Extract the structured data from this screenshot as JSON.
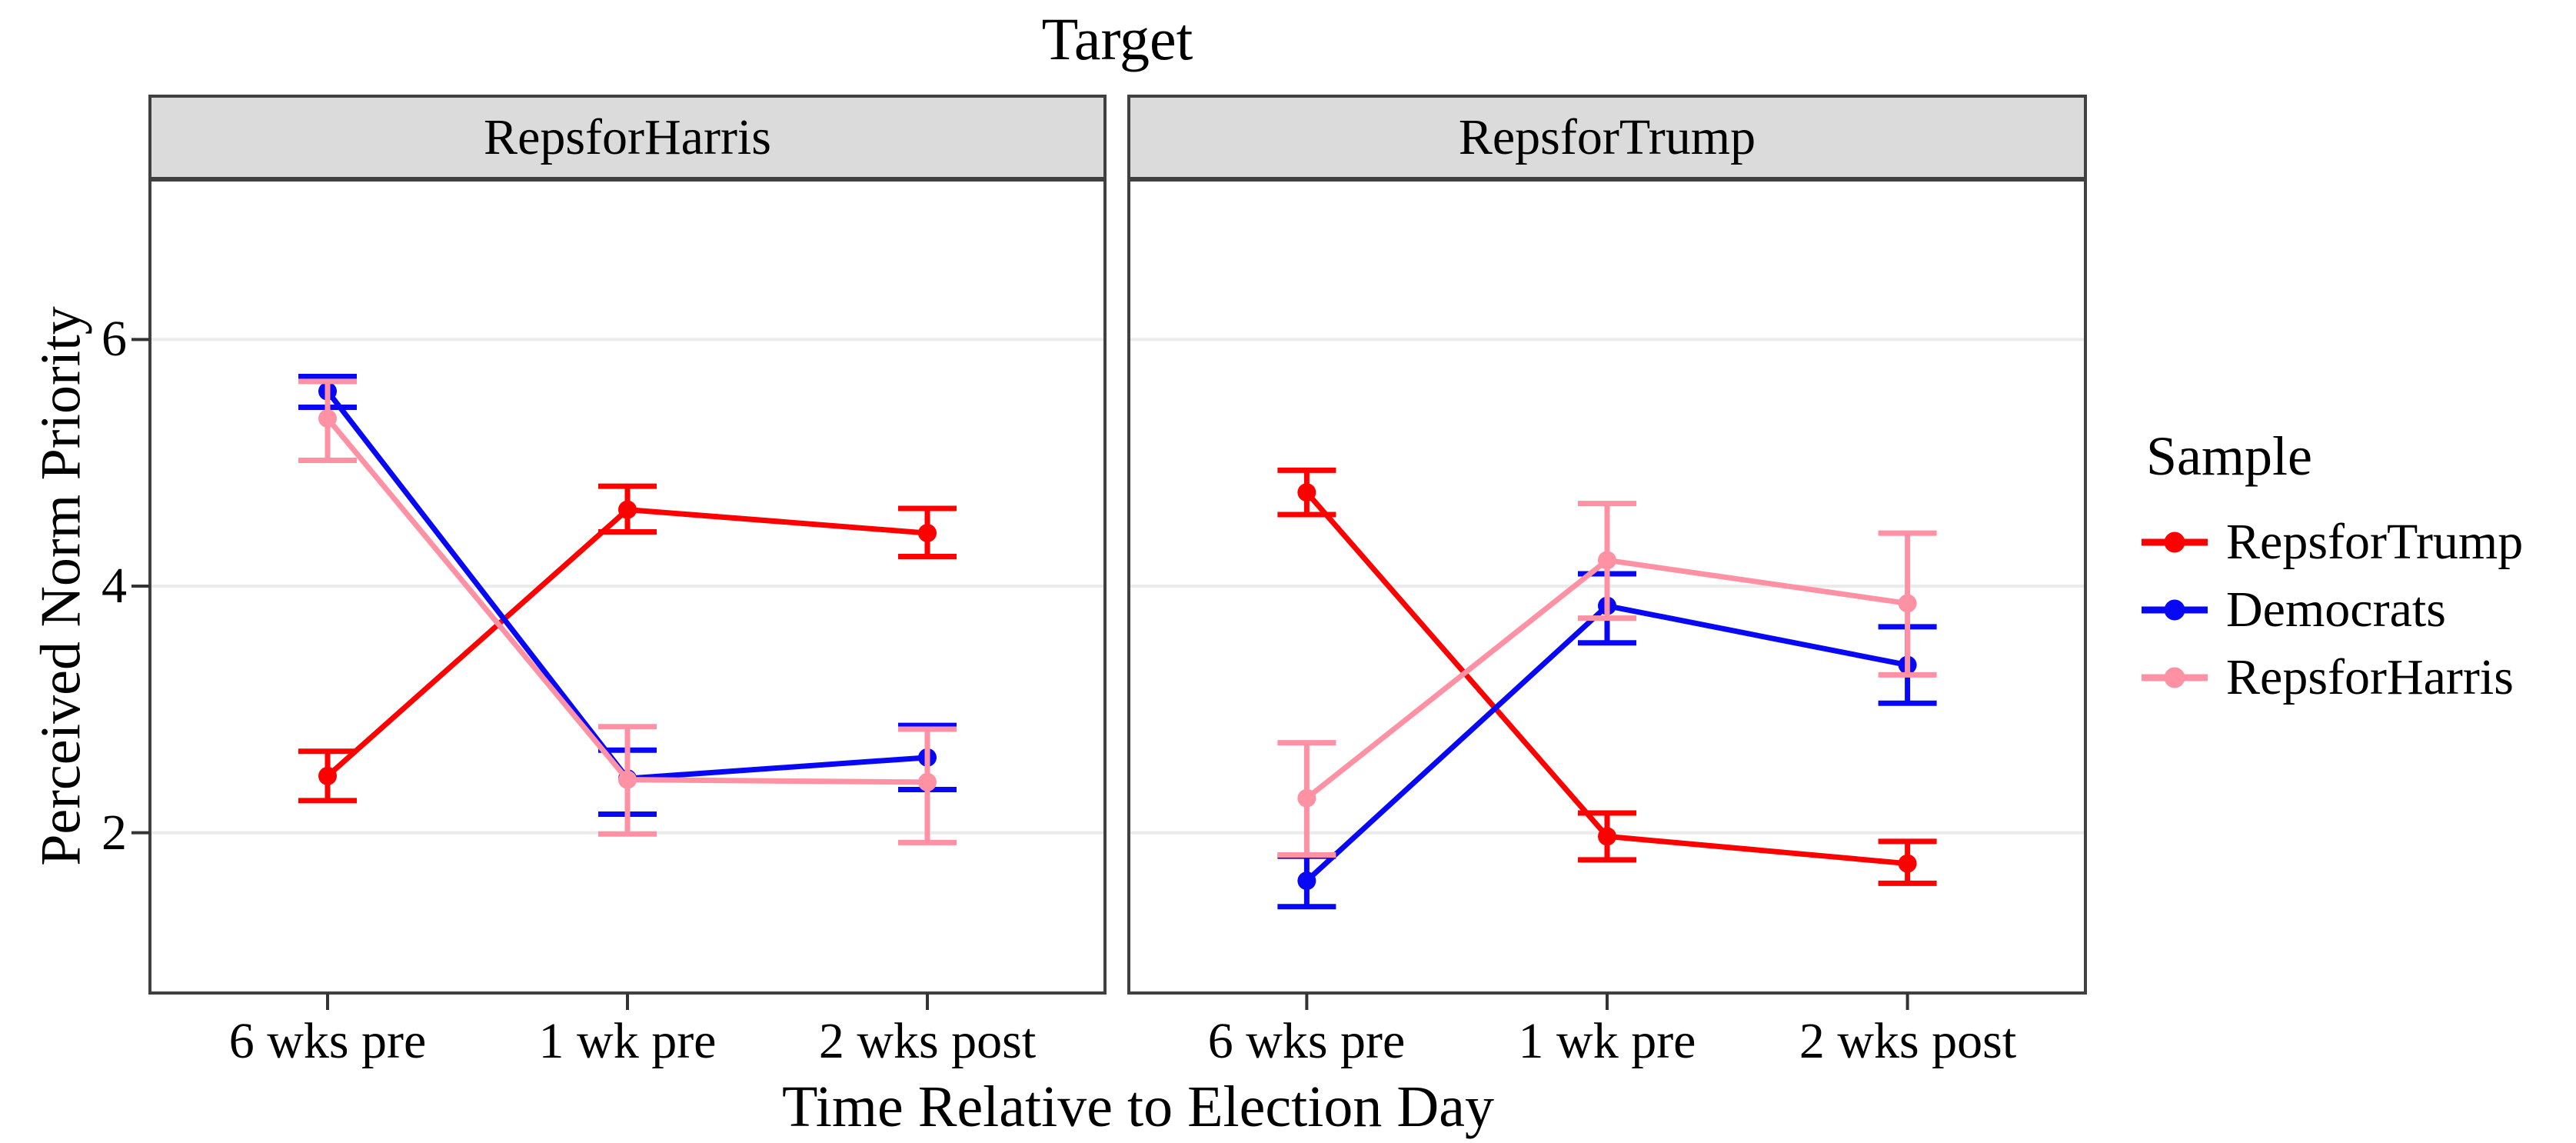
{
  "title": "Target",
  "chart_data": {
    "type": "line",
    "title": "Target",
    "xlabel": "Time Relative to Election Day",
    "ylabel": "Perceived Norm Priority",
    "categories": [
      "6 wks pre",
      "1 wk pre",
      "2 wks post"
    ],
    "y_ticks": [
      2,
      4,
      6
    ],
    "y_tick_labels": [
      "6",
      "4",
      "2"
    ],
    "ylim": [
      0.7,
      7.3
    ],
    "grid": "horizontal-major-only",
    "error_bars": "95% CI",
    "colors": {
      "red": "#FF0000",
      "blue": "#0808F5",
      "pink": "#FF91A4",
      "strip_fill": "#DBDBDB",
      "panel_border": "#404040",
      "gridline": "#EBEBEB"
    },
    "legend": {
      "title": "Sample",
      "position": "right",
      "entries": [
        {
          "label": "RepsforTrump",
          "color": "#FF0000"
        },
        {
          "label": "Democrats",
          "color": "#0808F5"
        },
        {
          "label": "RepsforHarris",
          "color": "#FF91A4"
        }
      ]
    },
    "panels": [
      {
        "facet": "RepsforHarris",
        "series": [
          {
            "name": "RepsforTrump",
            "color": "#FF0000",
            "values": [
              2.46,
              4.62,
              4.43
            ],
            "ci_low": [
              2.26,
              4.44,
              4.24
            ],
            "ci_high": [
              2.66,
              4.81,
              4.63
            ]
          },
          {
            "name": "Democrats",
            "color": "#0808F5",
            "values": [
              5.58,
              2.44,
              2.61
            ],
            "ci_low": [
              5.45,
              2.15,
              2.35
            ],
            "ci_high": [
              5.7,
              2.67,
              2.87
            ]
          },
          {
            "name": "RepsforHarris",
            "color": "#FF91A4",
            "values": [
              5.36,
              2.43,
              2.41
            ],
            "ci_low": [
              5.02,
              1.99,
              1.92
            ],
            "ci_high": [
              5.66,
              2.86,
              2.84
            ]
          }
        ]
      },
      {
        "facet": "RepsforTrump",
        "series": [
          {
            "name": "RepsforTrump",
            "color": "#FF0000",
            "values": [
              4.76,
              1.97,
              1.75
            ],
            "ci_low": [
              4.58,
              1.78,
              1.59
            ],
            "ci_high": [
              4.94,
              2.16,
              1.93
            ]
          },
          {
            "name": "Democrats",
            "color": "#0808F5",
            "values": [
              1.61,
              3.84,
              3.36
            ],
            "ci_low": [
              1.4,
              3.54,
              3.05
            ],
            "ci_high": [
              1.81,
              4.1,
              3.67
            ]
          },
          {
            "name": "RepsforHarris",
            "color": "#FF91A4",
            "values": [
              2.28,
              4.21,
              3.86
            ],
            "ci_low": [
              1.82,
              3.74,
              3.28
            ],
            "ci_high": [
              2.73,
              4.67,
              4.43
            ]
          }
        ]
      }
    ]
  }
}
